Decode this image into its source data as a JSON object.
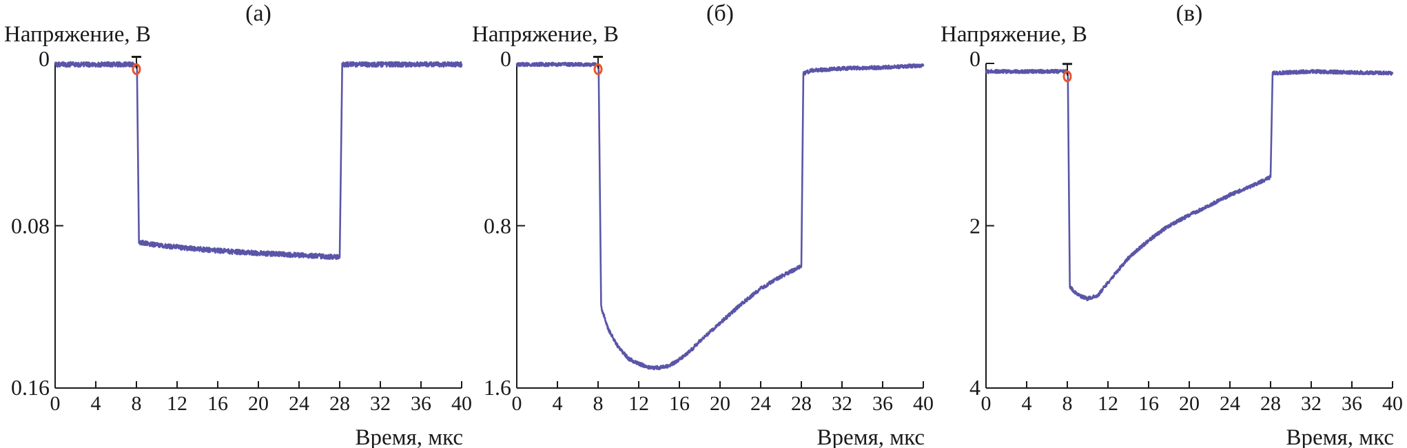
{
  "chart_data": [
    {
      "type": "line",
      "panel_label": "(а)",
      "ylabel": "Напряжение, В",
      "xlabel": "Время, мкс",
      "xlim": [
        0,
        40
      ],
      "ylim": [
        0,
        0.16
      ],
      "y_inverted": true,
      "x_ticks": [
        "0",
        "4",
        "8",
        "12",
        "16",
        "20",
        "24",
        "28",
        "32",
        "36",
        "40"
      ],
      "y_ticks": [
        "0",
        "0.08",
        "0.16"
      ],
      "series_color": "#5a55a8",
      "marker_color": "#e8562a",
      "marker_x": 8,
      "noise": 0.0012,
      "points": [
        [
          0,
          0.0005
        ],
        [
          7.9,
          0.0005
        ],
        [
          8.05,
          0.0004
        ],
        [
          8.25,
          0.088
        ],
        [
          10,
          0.0895
        ],
        [
          14,
          0.0915
        ],
        [
          18,
          0.093
        ],
        [
          22,
          0.094
        ],
        [
          26,
          0.095
        ],
        [
          28,
          0.0955
        ],
        [
          28.25,
          0.0005
        ],
        [
          40,
          0.0005
        ]
      ]
    },
    {
      "type": "line",
      "panel_label": "(б)",
      "ylabel": "Напряжение, В",
      "xlabel": "Время, мкс",
      "xlim": [
        0,
        40
      ],
      "ylim": [
        0,
        1.6
      ],
      "y_inverted": true,
      "x_ticks": [
        "0",
        "4",
        "8",
        "12",
        "16",
        "20",
        "24",
        "28",
        "32",
        "36",
        "40"
      ],
      "y_ticks": [
        "0",
        "0.8",
        "1.6"
      ],
      "series_color": "#5a55a8",
      "marker_color": "#e8562a",
      "marker_x": 8,
      "noise": 0.009,
      "points": [
        [
          0,
          0.005
        ],
        [
          7.9,
          0.005
        ],
        [
          8.05,
          0.006
        ],
        [
          8.3,
          1.2
        ],
        [
          9,
          1.31
        ],
        [
          10,
          1.4
        ],
        [
          11,
          1.455
        ],
        [
          12,
          1.48
        ],
        [
          13,
          1.5
        ],
        [
          14,
          1.5
        ],
        [
          15,
          1.49
        ],
        [
          16,
          1.46
        ],
        [
          17,
          1.42
        ],
        [
          18,
          1.37
        ],
        [
          20,
          1.28
        ],
        [
          22,
          1.19
        ],
        [
          24,
          1.11
        ],
        [
          26,
          1.05
        ],
        [
          28,
          1.0
        ],
        [
          28.2,
          0.05
        ],
        [
          29,
          0.035
        ],
        [
          32,
          0.025
        ],
        [
          36,
          0.02
        ],
        [
          40,
          0.01
        ]
      ]
    },
    {
      "type": "line",
      "panel_label": "(в)",
      "ylabel": "Напряжение, В",
      "xlabel": "Время, мкс",
      "xlim": [
        0,
        40
      ],
      "ylim": [
        0,
        4
      ],
      "y_inverted": true,
      "x_ticks": [
        "0",
        "4",
        "8",
        "12",
        "16",
        "20",
        "24",
        "28",
        "32",
        "36",
        "40"
      ],
      "y_ticks": [
        "0",
        "2",
        "4"
      ],
      "series_color": "#5a55a8",
      "marker_color": "#e8562a",
      "marker_x": 8,
      "noise": 0.022,
      "points": [
        [
          0,
          0.1
        ],
        [
          7.9,
          0.1
        ],
        [
          8.05,
          0.1
        ],
        [
          8.25,
          2.75
        ],
        [
          9,
          2.85
        ],
        [
          10,
          2.9
        ],
        [
          11,
          2.86
        ],
        [
          12,
          2.7
        ],
        [
          13,
          2.55
        ],
        [
          14,
          2.4
        ],
        [
          16,
          2.18
        ],
        [
          18,
          2.0
        ],
        [
          20,
          1.87
        ],
        [
          22,
          1.75
        ],
        [
          24,
          1.62
        ],
        [
          26,
          1.52
        ],
        [
          28,
          1.4
        ],
        [
          28.2,
          0.12
        ],
        [
          32,
          0.1
        ],
        [
          40,
          0.12
        ]
      ]
    }
  ]
}
